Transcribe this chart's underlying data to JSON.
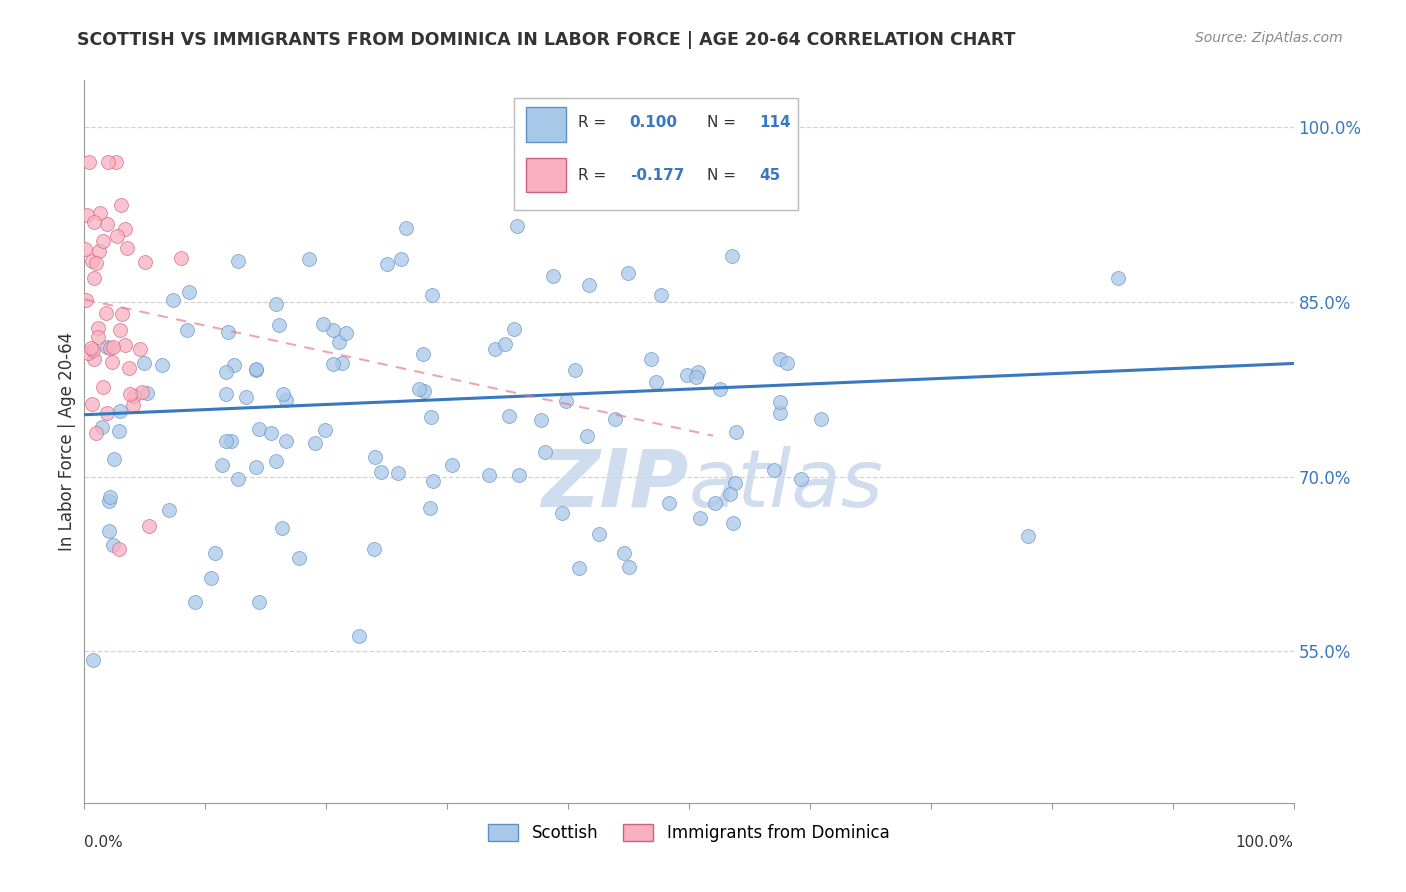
{
  "title": "SCOTTISH VS IMMIGRANTS FROM DOMINICA IN LABOR FORCE | AGE 20-64 CORRELATION CHART",
  "source": "Source: ZipAtlas.com",
  "ylabel": "In Labor Force | Age 20-64",
  "xlim": [
    0.0,
    1.0
  ],
  "ylim": [
    0.42,
    1.04
  ],
  "ytick_positions": [
    0.55,
    0.7,
    0.85,
    1.0
  ],
  "ytick_labels": [
    "55.0%",
    "70.0%",
    "85.0%",
    "100.0%"
  ],
  "scatter_blue_color": "#a8c8e8",
  "scatter_blue_edge": "#6090c8",
  "scatter_pink_color": "#f8b0c0",
  "scatter_pink_edge": "#d06080",
  "line_blue_color": "#3878c0",
  "line_pink_color": "#e07888",
  "grid_color": "#c8c8c8",
  "watermark_color": "#c8d8ec",
  "background_color": "#ffffff",
  "R_blue": 0.1,
  "N_blue": 114,
  "R_pink": -0.177,
  "N_pink": 45,
  "blue_line_x0": 0.0,
  "blue_line_y0": 0.753,
  "blue_line_x1": 1.0,
  "blue_line_y1": 0.797,
  "pink_line_x0": 0.0,
  "pink_line_y0": 0.852,
  "pink_line_x1": 0.52,
  "pink_line_y1": 0.735
}
